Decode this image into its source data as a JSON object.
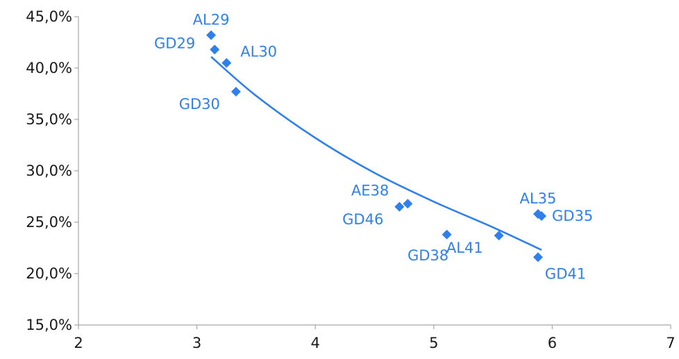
{
  "chart_data": {
    "type": "scatter",
    "title": "",
    "xlabel": "",
    "ylabel": "",
    "xlim": [
      2,
      7
    ],
    "ylim": [
      15,
      45
    ],
    "x_ticks": [
      2,
      3,
      4,
      5,
      6,
      7
    ],
    "x_tick_labels": [
      "2",
      "3",
      "4",
      "5",
      "6",
      "7"
    ],
    "y_ticks": [
      15,
      20,
      25,
      30,
      35,
      40,
      45
    ],
    "y_tick_labels": [
      "15,0%",
      "20,0%",
      "25,0%",
      "30,0%",
      "35,0%",
      "40,0%",
      "45,0%"
    ],
    "grid": false,
    "legend": "none",
    "marker": "diamond",
    "color": "#2f80ed",
    "points": [
      {
        "label": "AL29",
        "x": 3.12,
        "y": 43.2,
        "label_pos": "above"
      },
      {
        "label": "GD29",
        "x": 3.15,
        "y": 41.8,
        "label_pos": "left"
      },
      {
        "label": "AL30",
        "x": 3.25,
        "y": 40.5,
        "label_pos": "upper-right"
      },
      {
        "label": "GD30",
        "x": 3.33,
        "y": 37.7,
        "label_pos": "lower-left"
      },
      {
        "label": "AE38",
        "x": 4.78,
        "y": 26.8,
        "label_pos": "upper-left"
      },
      {
        "label": "GD46",
        "x": 4.71,
        "y": 26.5,
        "label_pos": "lower-left"
      },
      {
        "label": "GD38",
        "x": 5.11,
        "y": 23.8,
        "label_pos": "below"
      },
      {
        "label": "AL41",
        "x": 5.55,
        "y": 23.7,
        "label_pos": "lower-left"
      },
      {
        "label": "AL35",
        "x": 5.88,
        "y": 25.8,
        "label_pos": "above"
      },
      {
        "label": "GD35",
        "x": 5.91,
        "y": 25.6,
        "label_pos": "right"
      },
      {
        "label": "GD41",
        "x": 5.88,
        "y": 21.6,
        "label_pos": "lower-right"
      }
    ],
    "trendline": {
      "type": "power",
      "x_range": [
        3.12,
        5.91
      ],
      "points": [
        {
          "x": 3.12,
          "y": 41.1
        },
        {
          "x": 3.5,
          "y": 37.3
        },
        {
          "x": 4.0,
          "y": 33.2
        },
        {
          "x": 4.5,
          "y": 29.8
        },
        {
          "x": 5.0,
          "y": 27.0
        },
        {
          "x": 5.5,
          "y": 24.5
        },
        {
          "x": 5.91,
          "y": 22.3
        }
      ]
    }
  }
}
